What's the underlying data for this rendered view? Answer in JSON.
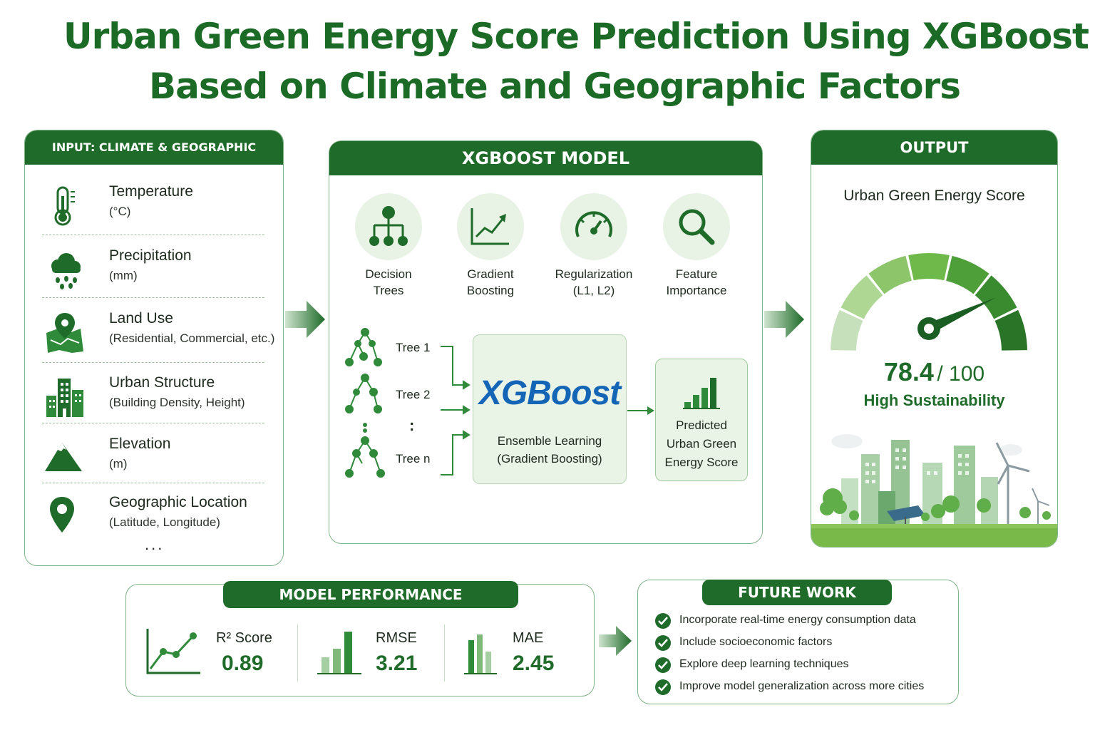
{
  "title": {
    "line1": "Urban Green Energy Score Prediction Using XGBoost",
    "line2": "Based on Climate and Geographic Factors"
  },
  "input": {
    "header": "INPUT: CLIMATE & GEOGRAPHIC FACTORS",
    "factors": [
      {
        "name": "Temperature",
        "unit": "(°C)",
        "icon": "thermometer-icon"
      },
      {
        "name": "Precipitation",
        "unit": "(mm)",
        "icon": "rain-cloud-icon"
      },
      {
        "name": "Land Use",
        "unit": "(Residential, Commercial, etc.)",
        "icon": "map-pin-icon"
      },
      {
        "name": "Urban Structure",
        "unit": "(Building Density, Height)",
        "icon": "buildings-icon"
      },
      {
        "name": "Elevation",
        "unit": "(m)",
        "icon": "mountain-icon"
      },
      {
        "name": "Geographic Location",
        "unit": "(Latitude, Longitude)",
        "icon": "location-pin-icon"
      }
    ],
    "more": "..."
  },
  "model": {
    "header": "XGBOOST MODEL",
    "features": [
      {
        "line1": "Decision",
        "line2": "Trees",
        "icon": "decision-tree-icon"
      },
      {
        "line1": "Gradient",
        "line2": "Boosting",
        "icon": "trend-chart-icon"
      },
      {
        "line1": "Regularization",
        "line2": "(L1, L2)",
        "icon": "gauge-icon"
      },
      {
        "line1": "Feature",
        "line2": "Importance",
        "icon": "magnifier-icon"
      }
    ],
    "trees": [
      "Tree 1",
      "Tree 2",
      "Tree n"
    ],
    "tree_ellipsis": ":",
    "logo": "XGBoost",
    "ensemble_line1": "Ensemble Learning",
    "ensemble_line2": "(Gradient Boosting)",
    "predicted_line1": "Predicted",
    "predicted_line2": "Urban Green",
    "predicted_line3": "Energy Score"
  },
  "output": {
    "header": "OUTPUT",
    "title": "Urban Green Energy Score",
    "score": "78.4",
    "max": "/ 100",
    "score_value": 78.4,
    "label": "High Sustainability"
  },
  "performance": {
    "header": "MODEL PERFORMANCE",
    "metrics": [
      {
        "name": "R² Score",
        "value": "0.89",
        "icon": "line-chart-icon"
      },
      {
        "name": "RMSE",
        "value": "3.21",
        "icon": "bar-chart-icon"
      },
      {
        "name": "MAE",
        "value": "2.45",
        "icon": "column-chart-icon"
      }
    ]
  },
  "future": {
    "header": "FUTURE WORK",
    "items": [
      "Incorporate real-time energy consumption data",
      "Include socioeconomic factors",
      "Explore deep learning techniques",
      "Improve model generalization across more cities"
    ]
  },
  "colors": {
    "primary": "#1f6b29",
    "accent_light": "#e8f3e6",
    "logo_blue": "#1565b7"
  }
}
